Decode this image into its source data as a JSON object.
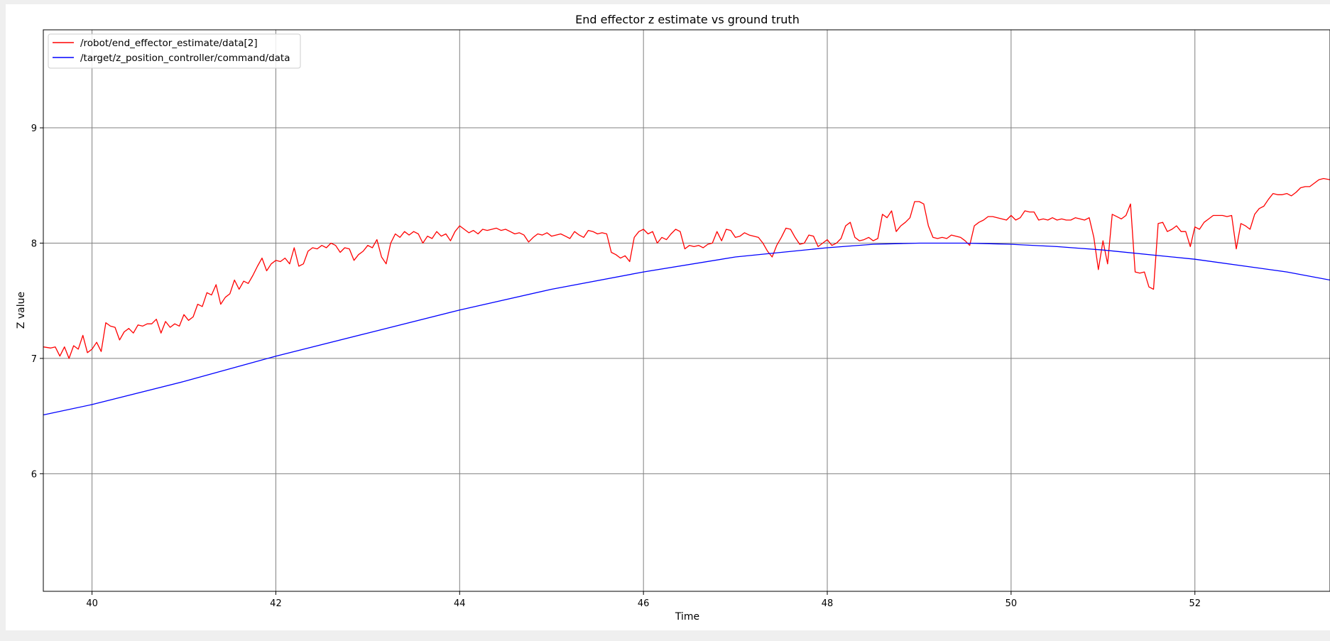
{
  "chart_data": {
    "type": "line",
    "title": "End effector z estimate vs ground truth",
    "xlabel": "Time",
    "ylabel": "Z value",
    "xlim": [
      39.47,
      53.47
    ],
    "ylim": [
      4.98,
      9.85
    ],
    "xticks": [
      40,
      42,
      44,
      46,
      48,
      50,
      52
    ],
    "yticks": [
      6,
      7,
      8,
      9
    ],
    "grid": true,
    "legend_position": "top-left",
    "series": [
      {
        "name": "/robot/end_effector_estimate/data[2]",
        "color": "#ff0000",
        "points": [
          [
            39.47,
            7.1
          ],
          [
            39.55,
            7.09
          ],
          [
            39.6,
            7.1
          ],
          [
            39.65,
            7.02
          ],
          [
            39.7,
            7.1
          ],
          [
            39.75,
            7.0
          ],
          [
            39.8,
            7.11
          ],
          [
            39.85,
            7.08
          ],
          [
            39.9,
            7.2
          ],
          [
            39.95,
            7.05
          ],
          [
            40.0,
            7.08
          ],
          [
            40.05,
            7.14
          ],
          [
            40.1,
            7.06
          ],
          [
            40.15,
            7.31
          ],
          [
            40.2,
            7.28
          ],
          [
            40.25,
            7.27
          ],
          [
            40.3,
            7.16
          ],
          [
            40.35,
            7.23
          ],
          [
            40.4,
            7.26
          ],
          [
            40.45,
            7.22
          ],
          [
            40.5,
            7.29
          ],
          [
            40.55,
            7.28
          ],
          [
            40.6,
            7.3
          ],
          [
            40.65,
            7.3
          ],
          [
            40.7,
            7.34
          ],
          [
            40.75,
            7.22
          ],
          [
            40.8,
            7.32
          ],
          [
            40.85,
            7.27
          ],
          [
            40.9,
            7.3
          ],
          [
            40.95,
            7.28
          ],
          [
            41.0,
            7.38
          ],
          [
            41.05,
            7.33
          ],
          [
            41.1,
            7.36
          ],
          [
            41.15,
            7.47
          ],
          [
            41.2,
            7.45
          ],
          [
            41.25,
            7.57
          ],
          [
            41.3,
            7.55
          ],
          [
            41.35,
            7.64
          ],
          [
            41.4,
            7.47
          ],
          [
            41.45,
            7.53
          ],
          [
            41.5,
            7.56
          ],
          [
            41.55,
            7.68
          ],
          [
            41.6,
            7.6
          ],
          [
            41.65,
            7.67
          ],
          [
            41.7,
            7.65
          ],
          [
            41.75,
            7.72
          ],
          [
            41.8,
            7.8
          ],
          [
            41.85,
            7.87
          ],
          [
            41.9,
            7.76
          ],
          [
            41.95,
            7.82
          ],
          [
            42.0,
            7.85
          ],
          [
            42.05,
            7.84
          ],
          [
            42.1,
            7.87
          ],
          [
            42.15,
            7.82
          ],
          [
            42.2,
            7.96
          ],
          [
            42.25,
            7.8
          ],
          [
            42.3,
            7.82
          ],
          [
            42.35,
            7.93
          ],
          [
            42.4,
            7.96
          ],
          [
            42.45,
            7.95
          ],
          [
            42.5,
            7.98
          ],
          [
            42.55,
            7.96
          ],
          [
            42.6,
            8.0
          ],
          [
            42.65,
            7.98
          ],
          [
            42.7,
            7.92
          ],
          [
            42.75,
            7.96
          ],
          [
            42.8,
            7.95
          ],
          [
            42.85,
            7.85
          ],
          [
            42.9,
            7.9
          ],
          [
            42.95,
            7.93
          ],
          [
            43.0,
            7.98
          ],
          [
            43.05,
            7.96
          ],
          [
            43.1,
            8.03
          ],
          [
            43.15,
            7.88
          ],
          [
            43.2,
            7.82
          ],
          [
            43.25,
            8.0
          ],
          [
            43.3,
            8.08
          ],
          [
            43.35,
            8.05
          ],
          [
            43.4,
            8.1
          ],
          [
            43.45,
            8.07
          ],
          [
            43.5,
            8.1
          ],
          [
            43.55,
            8.08
          ],
          [
            43.6,
            8.0
          ],
          [
            43.65,
            8.06
          ],
          [
            43.7,
            8.04
          ],
          [
            43.75,
            8.1
          ],
          [
            43.8,
            8.06
          ],
          [
            43.85,
            8.08
          ],
          [
            43.9,
            8.02
          ],
          [
            43.95,
            8.1
          ],
          [
            44.0,
            8.15
          ],
          [
            44.05,
            8.12
          ],
          [
            44.1,
            8.09
          ],
          [
            44.15,
            8.11
          ],
          [
            44.2,
            8.08
          ],
          [
            44.25,
            8.12
          ],
          [
            44.3,
            8.11
          ],
          [
            44.35,
            8.12
          ],
          [
            44.4,
            8.13
          ],
          [
            44.45,
            8.11
          ],
          [
            44.5,
            8.12
          ],
          [
            44.55,
            8.1
          ],
          [
            44.6,
            8.08
          ],
          [
            44.65,
            8.09
          ],
          [
            44.7,
            8.07
          ],
          [
            44.75,
            8.01
          ],
          [
            44.8,
            8.05
          ],
          [
            44.85,
            8.08
          ],
          [
            44.9,
            8.07
          ],
          [
            44.95,
            8.09
          ],
          [
            45.0,
            8.06
          ],
          [
            45.05,
            8.07
          ],
          [
            45.1,
            8.08
          ],
          [
            45.15,
            8.06
          ],
          [
            45.2,
            8.04
          ],
          [
            45.25,
            8.1
          ],
          [
            45.3,
            8.07
          ],
          [
            45.35,
            8.05
          ],
          [
            45.4,
            8.11
          ],
          [
            45.45,
            8.1
          ],
          [
            45.5,
            8.08
          ],
          [
            45.55,
            8.09
          ],
          [
            45.6,
            8.08
          ],
          [
            45.65,
            7.92
          ],
          [
            45.7,
            7.9
          ],
          [
            45.75,
            7.87
          ],
          [
            45.8,
            7.89
          ],
          [
            45.85,
            7.84
          ],
          [
            45.9,
            8.05
          ],
          [
            45.95,
            8.1
          ],
          [
            46.0,
            8.12
          ],
          [
            46.05,
            8.08
          ],
          [
            46.1,
            8.1
          ],
          [
            46.15,
            8.0
          ],
          [
            46.2,
            8.05
          ],
          [
            46.25,
            8.03
          ],
          [
            46.3,
            8.08
          ],
          [
            46.35,
            8.12
          ],
          [
            46.4,
            8.1
          ],
          [
            46.45,
            7.95
          ],
          [
            46.5,
            7.98
          ],
          [
            46.55,
            7.97
          ],
          [
            46.6,
            7.98
          ],
          [
            46.65,
            7.96
          ],
          [
            46.7,
            7.99
          ],
          [
            46.75,
            8.0
          ],
          [
            46.8,
            8.1
          ],
          [
            46.85,
            8.02
          ],
          [
            46.9,
            8.12
          ],
          [
            46.95,
            8.11
          ],
          [
            47.0,
            8.05
          ],
          [
            47.05,
            8.06
          ],
          [
            47.1,
            8.09
          ],
          [
            47.15,
            8.07
          ],
          [
            47.2,
            8.06
          ],
          [
            47.25,
            8.05
          ],
          [
            47.3,
            8.0
          ],
          [
            47.35,
            7.93
          ],
          [
            47.4,
            7.88
          ],
          [
            47.45,
            7.98
          ],
          [
            47.5,
            8.05
          ],
          [
            47.55,
            8.13
          ],
          [
            47.6,
            8.12
          ],
          [
            47.65,
            8.05
          ],
          [
            47.7,
            7.99
          ],
          [
            47.75,
            8.0
          ],
          [
            47.8,
            8.07
          ],
          [
            47.85,
            8.06
          ],
          [
            47.9,
            7.97
          ],
          [
            47.95,
            8.0
          ],
          [
            48.0,
            8.03
          ],
          [
            48.05,
            7.98
          ],
          [
            48.1,
            8.0
          ],
          [
            48.15,
            8.04
          ],
          [
            48.2,
            8.15
          ],
          [
            48.25,
            8.18
          ],
          [
            48.3,
            8.05
          ],
          [
            48.35,
            8.02
          ],
          [
            48.4,
            8.03
          ],
          [
            48.45,
            8.05
          ],
          [
            48.5,
            8.02
          ],
          [
            48.55,
            8.04
          ],
          [
            48.6,
            8.25
          ],
          [
            48.65,
            8.22
          ],
          [
            48.7,
            8.28
          ],
          [
            48.75,
            8.1
          ],
          [
            48.8,
            8.15
          ],
          [
            48.85,
            8.18
          ],
          [
            48.9,
            8.22
          ],
          [
            48.95,
            8.36
          ],
          [
            49.0,
            8.36
          ],
          [
            49.05,
            8.34
          ],
          [
            49.1,
            8.15
          ],
          [
            49.15,
            8.05
          ],
          [
            49.2,
            8.04
          ],
          [
            49.25,
            8.05
          ],
          [
            49.3,
            8.04
          ],
          [
            49.35,
            8.07
          ],
          [
            49.4,
            8.06
          ],
          [
            49.45,
            8.05
          ],
          [
            49.5,
            8.02
          ],
          [
            49.55,
            7.98
          ],
          [
            49.6,
            8.15
          ],
          [
            49.65,
            8.18
          ],
          [
            49.7,
            8.2
          ],
          [
            49.75,
            8.23
          ],
          [
            49.8,
            8.23
          ],
          [
            49.85,
            8.22
          ],
          [
            49.9,
            8.21
          ],
          [
            49.95,
            8.2
          ],
          [
            50.0,
            8.24
          ],
          [
            50.05,
            8.2
          ],
          [
            50.1,
            8.22
          ],
          [
            50.15,
            8.28
          ],
          [
            50.2,
            8.27
          ],
          [
            50.25,
            8.27
          ],
          [
            50.3,
            8.2
          ],
          [
            50.35,
            8.21
          ],
          [
            50.4,
            8.2
          ],
          [
            50.45,
            8.22
          ],
          [
            50.5,
            8.2
          ],
          [
            50.55,
            8.21
          ],
          [
            50.6,
            8.2
          ],
          [
            50.65,
            8.2
          ],
          [
            50.7,
            8.22
          ],
          [
            50.75,
            8.21
          ],
          [
            50.8,
            8.2
          ],
          [
            50.85,
            8.22
          ],
          [
            50.9,
            8.05
          ],
          [
            50.95,
            7.77
          ],
          [
            51.0,
            8.02
          ],
          [
            51.05,
            7.82
          ],
          [
            51.1,
            8.25
          ],
          [
            51.15,
            8.23
          ],
          [
            51.2,
            8.21
          ],
          [
            51.25,
            8.24
          ],
          [
            51.3,
            8.34
          ],
          [
            51.35,
            7.75
          ],
          [
            51.4,
            7.74
          ],
          [
            51.45,
            7.75
          ],
          [
            51.5,
            7.62
          ],
          [
            51.55,
            7.6
          ],
          [
            51.6,
            8.17
          ],
          [
            51.65,
            8.18
          ],
          [
            51.7,
            8.1
          ],
          [
            51.75,
            8.12
          ],
          [
            51.8,
            8.15
          ],
          [
            51.85,
            8.1
          ],
          [
            51.9,
            8.1
          ],
          [
            51.95,
            7.97
          ],
          [
            52.0,
            8.14
          ],
          [
            52.05,
            8.12
          ],
          [
            52.1,
            8.18
          ],
          [
            52.15,
            8.21
          ],
          [
            52.2,
            8.24
          ],
          [
            52.25,
            8.24
          ],
          [
            52.3,
            8.24
          ],
          [
            52.35,
            8.23
          ],
          [
            52.4,
            8.24
          ],
          [
            52.45,
            7.95
          ],
          [
            52.5,
            8.17
          ],
          [
            52.55,
            8.15
          ],
          [
            52.6,
            8.12
          ],
          [
            52.65,
            8.25
          ],
          [
            52.7,
            8.3
          ],
          [
            52.75,
            8.32
          ],
          [
            52.8,
            8.38
          ],
          [
            52.85,
            8.43
          ],
          [
            52.9,
            8.42
          ],
          [
            52.95,
            8.42
          ],
          [
            53.0,
            8.43
          ],
          [
            53.05,
            8.41
          ],
          [
            53.1,
            8.44
          ],
          [
            53.15,
            8.48
          ],
          [
            53.2,
            8.49
          ],
          [
            53.25,
            8.49
          ],
          [
            53.3,
            8.52
          ],
          [
            53.35,
            8.55
          ],
          [
            53.4,
            8.56
          ],
          [
            53.47,
            8.55
          ]
        ]
      },
      {
        "name": "/target/z_position_controller/command/data",
        "color": "#0000ff",
        "points": [
          [
            39.47,
            6.51
          ],
          [
            40.0,
            6.6
          ],
          [
            41.0,
            6.8
          ],
          [
            42.0,
            7.02
          ],
          [
            43.0,
            7.22
          ],
          [
            44.0,
            7.42
          ],
          [
            45.0,
            7.6
          ],
          [
            46.0,
            7.75
          ],
          [
            47.0,
            7.88
          ],
          [
            48.0,
            7.96
          ],
          [
            48.5,
            7.99
          ],
          [
            49.0,
            8.0
          ],
          [
            49.5,
            8.0
          ],
          [
            50.0,
            7.99
          ],
          [
            50.5,
            7.97
          ],
          [
            51.0,
            7.94
          ],
          [
            52.0,
            7.86
          ],
          [
            53.0,
            7.75
          ],
          [
            53.47,
            7.68
          ]
        ]
      }
    ]
  }
}
